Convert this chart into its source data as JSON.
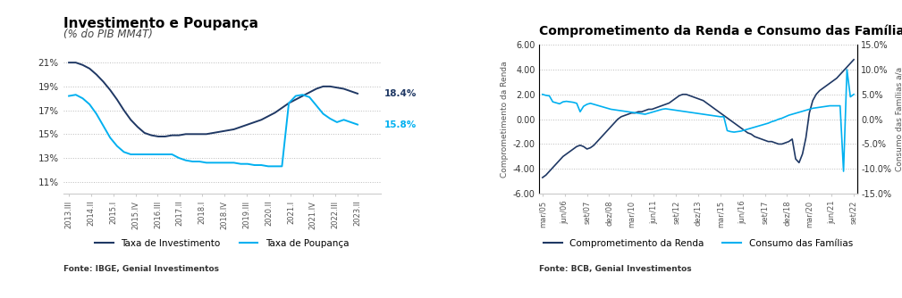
{
  "chart1": {
    "title": "Investimento e Poupança",
    "subtitle": "(% do PIB MM4T)",
    "source": "Fonte: IBGE, Genial Investimentos",
    "legend": [
      "Taxa de Investimento",
      "Taxa de Poupança"
    ],
    "colors": [
      "#1f3864",
      "#00b0f0"
    ],
    "ylim": [
      0.1,
      0.225
    ],
    "yticks": [
      0.11,
      0.13,
      0.15,
      0.17,
      0.19,
      0.21
    ],
    "xticks": [
      "2013.III",
      "2014.II",
      "2015.I",
      "2015.IV",
      "2016.III",
      "2017.II",
      "2018.I",
      "2018.IV",
      "2019.III",
      "2020.II",
      "2021.I",
      "2021.IV",
      "2022.III",
      "2023.II"
    ],
    "label1_value": "18.4%",
    "label2_value": "15.8%",
    "inv": [
      0.21,
      0.21,
      0.208,
      0.205,
      0.2,
      0.194,
      0.187,
      0.179,
      0.17,
      0.162,
      0.156,
      0.151,
      0.149,
      0.148,
      0.148,
      0.149,
      0.149,
      0.15,
      0.15,
      0.15,
      0.15,
      0.151,
      0.152,
      0.153,
      0.154,
      0.156,
      0.158,
      0.16,
      0.162,
      0.165,
      0.168,
      0.172,
      0.176,
      0.179,
      0.182,
      0.185,
      0.188,
      0.19,
      0.19,
      0.189,
      0.188,
      0.186,
      0.184
    ],
    "poup": [
      0.182,
      0.183,
      0.18,
      0.175,
      0.167,
      0.157,
      0.147,
      0.14,
      0.135,
      0.133,
      0.133,
      0.133,
      0.133,
      0.133,
      0.133,
      0.133,
      0.13,
      0.128,
      0.127,
      0.127,
      0.126,
      0.126,
      0.126,
      0.126,
      0.126,
      0.125,
      0.125,
      0.124,
      0.124,
      0.123,
      0.123,
      0.123,
      0.176,
      0.182,
      0.183,
      0.181,
      0.174,
      0.167,
      0.163,
      0.16,
      0.162,
      0.16,
      0.158
    ]
  },
  "chart2": {
    "title": "Comprometimento da Renda e Consumo das Famílias",
    "ylabel_left": "Comprometimento da Renda",
    "ylabel_right": "Consumo das Famílias a/a",
    "source": "Fonte: BCB, Genial Investimentos",
    "legend": [
      "Comprometimento da Renda",
      "Consumo das Famílias"
    ],
    "colors": [
      "#1f3864",
      "#00b0f0"
    ],
    "ylim_left": [
      -6.0,
      6.0
    ],
    "ylim_right": [
      -15.0,
      15.0
    ],
    "yticks_left": [
      -6.0,
      -4.0,
      -2.0,
      0.0,
      2.0,
      4.0,
      6.0
    ],
    "yticks_right": [
      -15.0,
      -10.0,
      -5.0,
      0.0,
      5.0,
      10.0,
      15.0
    ],
    "xtick_labels": [
      "mar/05",
      "jun/06",
      "set/07",
      "dez/08",
      "mar/10",
      "jun/11",
      "set/12",
      "dez/13",
      "mar/15",
      "jun/16",
      "set/17",
      "dez/18",
      "mar/20",
      "jun/21",
      "set/22"
    ],
    "renda": [
      -4.7,
      -4.5,
      -4.2,
      -3.9,
      -3.6,
      -3.3,
      -3.0,
      -2.8,
      -2.6,
      -2.4,
      -2.2,
      -2.1,
      -2.2,
      -2.4,
      -2.3,
      -2.1,
      -1.8,
      -1.5,
      -1.2,
      -0.9,
      -0.6,
      -0.3,
      0.0,
      0.2,
      0.3,
      0.4,
      0.5,
      0.5,
      0.6,
      0.6,
      0.7,
      0.8,
      0.8,
      0.9,
      1.0,
      1.1,
      1.2,
      1.3,
      1.5,
      1.7,
      1.9,
      2.0,
      2.0,
      1.9,
      1.8,
      1.7,
      1.6,
      1.5,
      1.3,
      1.1,
      0.9,
      0.7,
      0.5,
      0.3,
      0.1,
      -0.1,
      -0.3,
      -0.5,
      -0.7,
      -0.9,
      -1.1,
      -1.2,
      -1.4,
      -1.5,
      -1.6,
      -1.7,
      -1.8,
      -1.8,
      -1.9,
      -2.0,
      -2.0,
      -1.9,
      -1.8,
      -1.6,
      -3.2,
      -3.5,
      -2.8,
      -1.5,
      0.5,
      1.5,
      2.0,
      2.3,
      2.5,
      2.7,
      2.9,
      3.1,
      3.3,
      3.6,
      3.9,
      4.2,
      4.5,
      4.8
    ],
    "consumo": [
      5.0,
      4.8,
      4.7,
      3.5,
      3.3,
      3.1,
      3.5,
      3.6,
      3.5,
      3.4,
      3.2,
      1.5,
      2.6,
      3.0,
      3.2,
      3.0,
      2.8,
      2.6,
      2.4,
      2.2,
      2.0,
      1.9,
      1.8,
      1.7,
      1.6,
      1.5,
      1.4,
      1.3,
      1.2,
      1.1,
      1.0,
      1.2,
      1.4,
      1.6,
      1.8,
      2.0,
      2.1,
      2.0,
      1.9,
      1.8,
      1.7,
      1.6,
      1.5,
      1.4,
      1.3,
      1.2,
      1.1,
      1.0,
      0.9,
      0.8,
      0.7,
      0.6,
      0.5,
      0.5,
      -2.3,
      -2.5,
      -2.6,
      -2.5,
      -2.4,
      -2.2,
      -2.0,
      -1.8,
      -1.6,
      -1.4,
      -1.2,
      -1.0,
      -0.8,
      -0.5,
      -0.3,
      0.0,
      0.2,
      0.5,
      0.8,
      1.0,
      1.2,
      1.4,
      1.6,
      1.8,
      2.0,
      2.2,
      2.3,
      2.4,
      2.5,
      2.6,
      2.7,
      2.7,
      2.7,
      2.7,
      -10.5,
      10.0,
      4.5,
      5.0
    ]
  }
}
